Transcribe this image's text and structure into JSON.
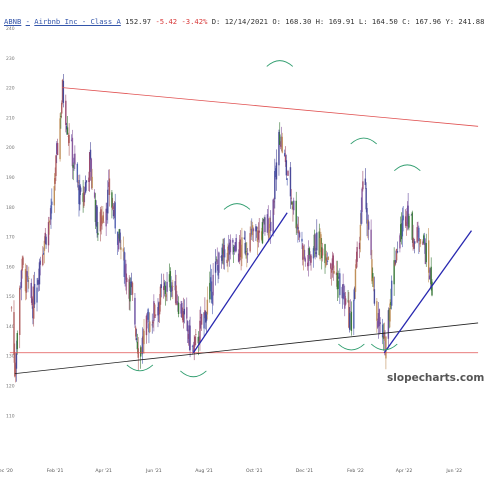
{
  "header": {
    "ticker": "ABNB",
    "name": "Airbnb Inc - Class A",
    "last": "152.97",
    "change": "-5.42",
    "change_pct": "-3.42%",
    "date": "D: 12/14/2021",
    "open": "O: 168.30",
    "high": "H: 169.91",
    "low": "L: 164.50",
    "close": "C: 167.96",
    "y_readout": "Y: 241.88"
  },
  "watermark": "slopecharts.com",
  "colors": {
    "resistance": "#e05050",
    "support_horizontal": "#e05050",
    "trend_blue": "#2828b0",
    "long_support": "#222222",
    "arcs": "#2f9d6e"
  },
  "chart_data": {
    "type": "candlestick",
    "title": "",
    "xlabel": "",
    "ylabel": "",
    "ylim": [
      95,
      240
    ],
    "y_ticks": [
      "240",
      "230",
      "220",
      "210",
      "200",
      "190",
      "180",
      "170",
      "160",
      "150",
      "140",
      "130",
      "120",
      "110"
    ],
    "x_ticks": [
      "Dec '20",
      "Feb '21",
      "Apr '21",
      "Jun '21",
      "Aug '21",
      "Oct '21",
      "Dec '21",
      "Feb '22",
      "Apr '22",
      "Jun '22"
    ],
    "grid": false,
    "anchors": [
      [
        "2020-12-10",
        146
      ],
      [
        "2020-12-14",
        125
      ],
      [
        "2020-12-22",
        160
      ],
      [
        "2021-01-05",
        147
      ],
      [
        "2021-01-15",
        165
      ],
      [
        "2021-01-28",
        178
      ],
      [
        "2021-02-10",
        219
      ],
      [
        "2021-02-20",
        200
      ],
      [
        "2021-03-05",
        180
      ],
      [
        "2021-03-15",
        195
      ],
      [
        "2021-03-25",
        172
      ],
      [
        "2021-04-08",
        185
      ],
      [
        "2021-04-20",
        168
      ],
      [
        "2021-05-05",
        150
      ],
      [
        "2021-05-14",
        131
      ],
      [
        "2021-05-24",
        140
      ],
      [
        "2021-06-10",
        150
      ],
      [
        "2021-06-22",
        155
      ],
      [
        "2021-07-05",
        145
      ],
      [
        "2021-07-19",
        131
      ],
      [
        "2021-08-03",
        145
      ],
      [
        "2021-08-16",
        160
      ],
      [
        "2021-08-31",
        165
      ],
      [
        "2021-09-14",
        165
      ],
      [
        "2021-09-28",
        170
      ],
      [
        "2021-10-08",
        171
      ],
      [
        "2021-10-22",
        176
      ],
      [
        "2021-11-01",
        205
      ],
      [
        "2021-11-10",
        190
      ],
      [
        "2021-11-22",
        175
      ],
      [
        "2021-12-03",
        160
      ],
      [
        "2021-12-14",
        168
      ],
      [
        "2021-12-28",
        165
      ],
      [
        "2022-01-11",
        155
      ],
      [
        "2022-01-27",
        141
      ],
      [
        "2022-02-04",
        165
      ],
      [
        "2022-02-11",
        190
      ],
      [
        "2022-02-23",
        150
      ],
      [
        "2022-03-08",
        132
      ],
      [
        "2022-03-22",
        165
      ],
      [
        "2022-04-05",
        180
      ],
      [
        "2022-04-14",
        168
      ],
      [
        "2022-04-22",
        172
      ],
      [
        "2022-05-06",
        152
      ]
    ],
    "trendlines": [
      {
        "name": "resistance",
        "from": [
          "2021-02-10",
          220
        ],
        "to": [
          "2022-06-30",
          207
        ],
        "color": "#e05050"
      },
      {
        "name": "support-horizontal",
        "from": [
          "2020-12-08",
          131
        ],
        "to": [
          "2022-06-30",
          131
        ],
        "color": "#e05050"
      },
      {
        "name": "long-support",
        "from": [
          "2020-12-14",
          124
        ],
        "to": [
          "2022-06-30",
          141
        ],
        "color": "#222222"
      },
      {
        "name": "uptrend-2021",
        "from": [
          "2021-07-19",
          131
        ],
        "to": [
          "2021-11-10",
          178
        ],
        "color": "#2828b0"
      },
      {
        "name": "uptrend-2022",
        "from": [
          "2022-03-08",
          131
        ],
        "to": [
          "2022-06-22",
          172
        ],
        "color": "#2828b0"
      }
    ],
    "arcs": [
      {
        "name": "arc-bottom-may21",
        "center": [
          "2021-05-15",
          126
        ],
        "direction": "down"
      },
      {
        "name": "arc-bottom-jul21",
        "center": [
          "2021-07-19",
          124
        ],
        "direction": "down"
      },
      {
        "name": "arc-top-sep21",
        "center": [
          "2021-09-10",
          180
        ],
        "direction": "up"
      },
      {
        "name": "arc-top-nov21",
        "center": [
          "2021-11-01",
          228
        ],
        "direction": "up"
      },
      {
        "name": "arc-bottom-jan22",
        "center": [
          "2022-01-27",
          133
        ],
        "direction": "down"
      },
      {
        "name": "arc-top-feb22",
        "center": [
          "2022-02-11",
          202
        ],
        "direction": "up"
      },
      {
        "name": "arc-bottom-mar22",
        "center": [
          "2022-03-08",
          133
        ],
        "direction": "down"
      },
      {
        "name": "arc-top-apr22",
        "center": [
          "2022-04-05",
          193
        ],
        "direction": "up"
      }
    ]
  }
}
